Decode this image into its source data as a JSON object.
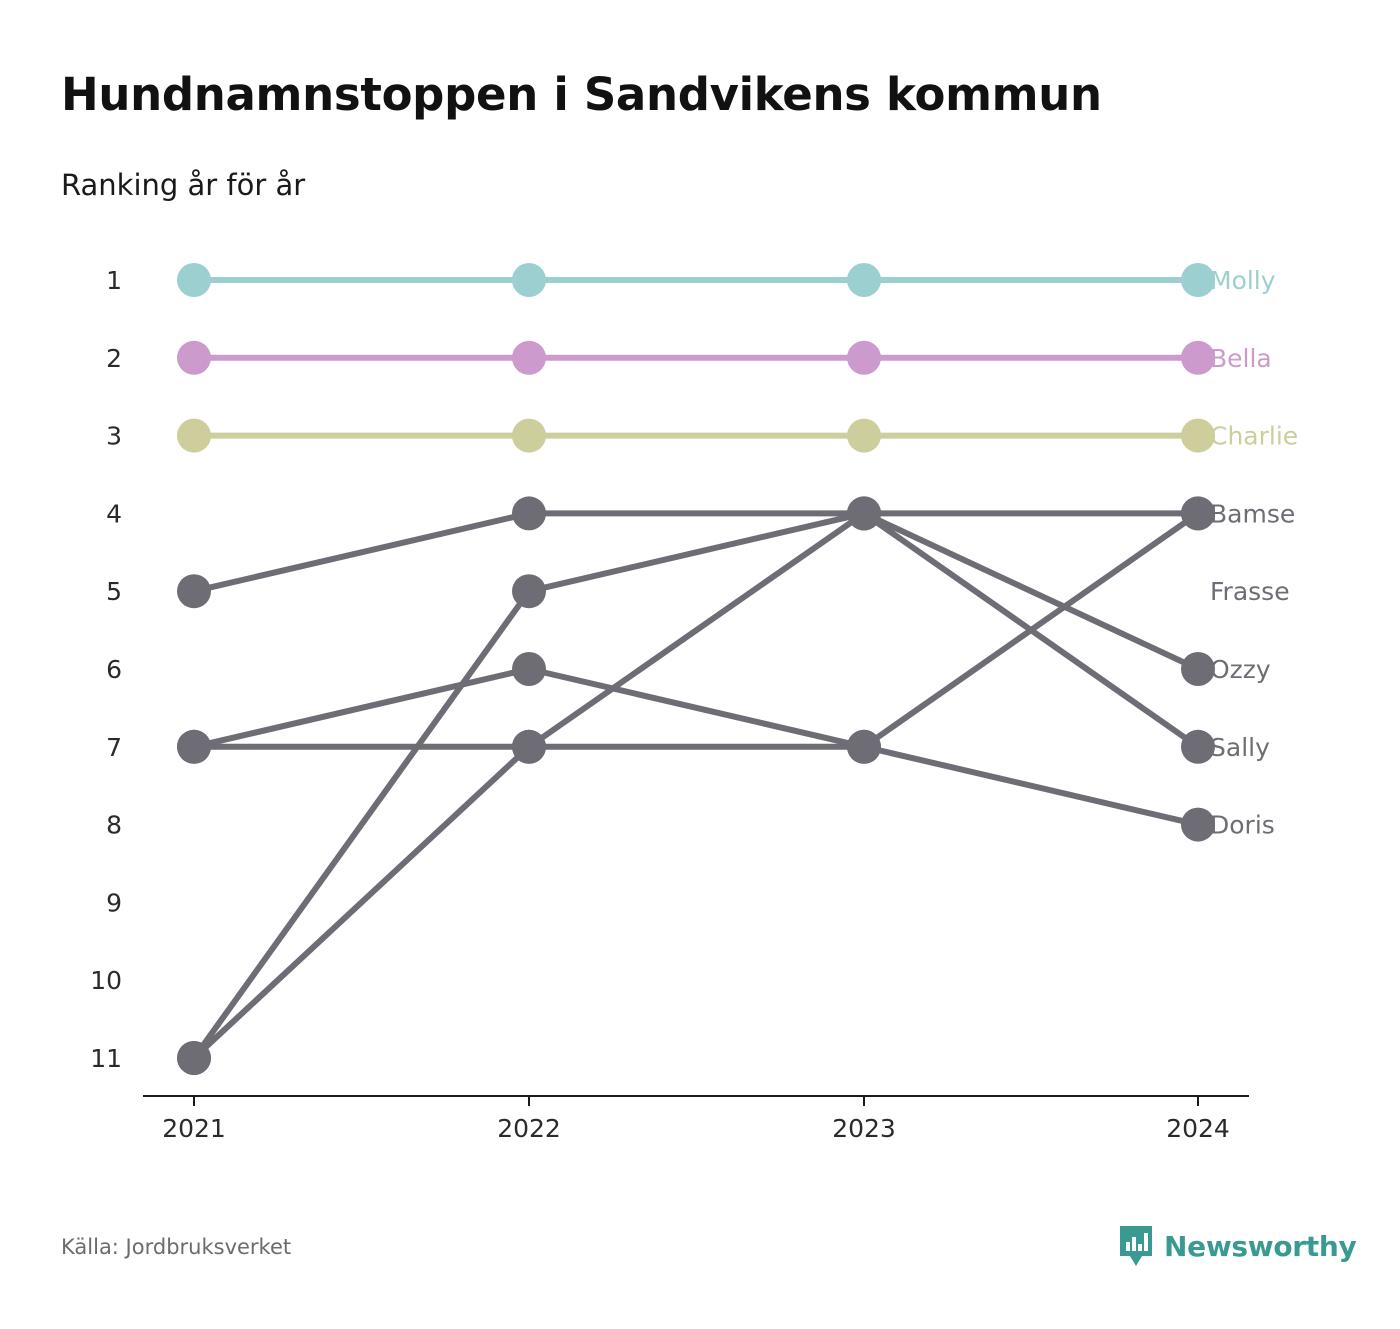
{
  "title": "Hundnamnstoppen i Sandvikens kommun",
  "subtitle": "Ranking år för år",
  "source": "Källa: Jordbruksverket",
  "brand": {
    "name": "Newsworthy",
    "icon": "newsworthy-logo-icon",
    "color": "#3a9a92"
  },
  "chart_data": {
    "type": "line",
    "title": "Hundnamnstoppen i Sandvikens kommun",
    "subtitle": "Ranking år för år",
    "x": [
      "2021",
      "2022",
      "2023",
      "2024"
    ],
    "y_ticks": [
      "1",
      "2",
      "3",
      "4",
      "5",
      "6",
      "7",
      "8",
      "9",
      "10",
      "11"
    ],
    "y_reversed": true,
    "ylim": [
      1,
      11
    ],
    "grid": false,
    "legend": "direct labels at right end",
    "series": [
      {
        "name": "Molly",
        "values": [
          1,
          1,
          1,
          1
        ],
        "color": "#9ccfcf"
      },
      {
        "name": "Bella",
        "values": [
          2,
          2,
          2,
          2
        ],
        "color": "#cc9acd"
      },
      {
        "name": "Charlie",
        "values": [
          3,
          3,
          3,
          3
        ],
        "color": "#cdce9c"
      },
      {
        "name": "Bamse",
        "values": [
          11,
          7,
          7,
          4
        ],
        "color": "#6e6d75"
      },
      {
        "name": "Frasse",
        "values": [
          null,
          null,
          null,
          null
        ],
        "color": "#6e6d75"
      },
      {
        "name": "Ozzy",
        "values": [
          11,
          5,
          4,
          6
        ],
        "color": "#6e6d75"
      },
      {
        "name": "Sally",
        "values": [
          7,
          7,
          4,
          7
        ],
        "color": "#6e6d75"
      },
      {
        "name": "Doris",
        "values": [
          7,
          6,
          7,
          8
        ],
        "color": "#6e6d75"
      },
      {
        "name": "",
        "values": [
          5,
          4,
          4,
          4
        ],
        "color": "#6e6d75"
      }
    ]
  }
}
